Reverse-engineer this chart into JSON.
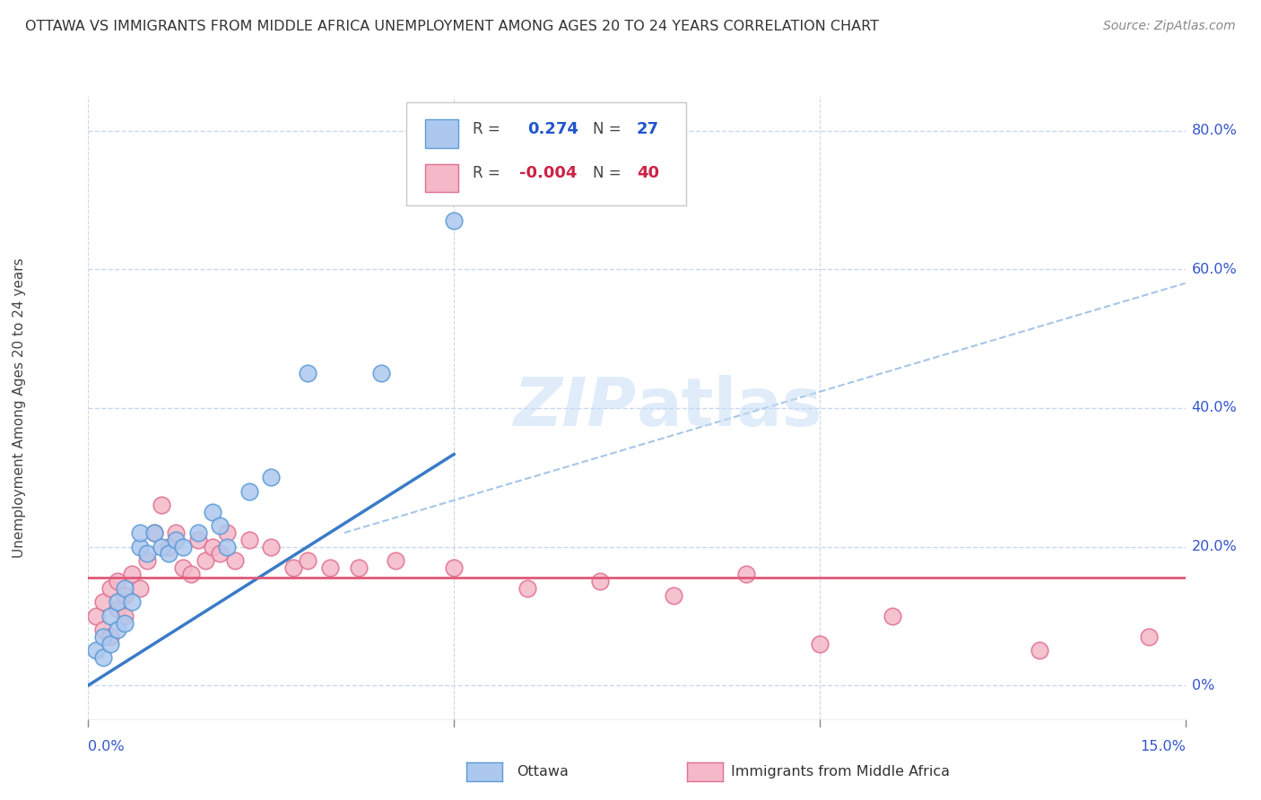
{
  "title": "OTTAWA VS IMMIGRANTS FROM MIDDLE AFRICA UNEMPLOYMENT AMONG AGES 20 TO 24 YEARS CORRELATION CHART",
  "source": "Source: ZipAtlas.com",
  "ylabel": "Unemployment Among Ages 20 to 24 years",
  "legend_label_ottawa": "Ottawa",
  "legend_label_immigrants": "Immigrants from Middle Africa",
  "r_ottawa": 0.274,
  "n_ottawa": 27,
  "r_immigrants": -0.004,
  "n_immigrants": 40,
  "watermark": "ZIPatlas",
  "ottawa_color": "#adc8ef",
  "ottawa_edge_color": "#5b9bd5",
  "ottawa_line_color": "#3a7bc8",
  "immigrants_color": "#f4b8c8",
  "immigrants_edge_color": "#e07090",
  "immigrants_line_color": "#e05878",
  "dashed_line_color": "#90b8e0",
  "grid_color": "#c8d8ec",
  "background_color": "#ffffff",
  "ottawa_scatter_x": [
    0.001,
    0.002,
    0.002,
    0.003,
    0.003,
    0.004,
    0.004,
    0.005,
    0.005,
    0.006,
    0.007,
    0.007,
    0.008,
    0.009,
    0.01,
    0.011,
    0.012,
    0.013,
    0.015,
    0.017,
    0.019,
    0.022,
    0.025,
    0.03,
    0.04,
    0.05,
    0.018
  ],
  "ottawa_scatter_y": [
    0.05,
    0.04,
    0.07,
    0.06,
    0.1,
    0.08,
    0.12,
    0.09,
    0.14,
    0.12,
    0.2,
    0.22,
    0.19,
    0.22,
    0.2,
    0.19,
    0.21,
    0.2,
    0.22,
    0.25,
    0.2,
    0.28,
    0.3,
    0.45,
    0.45,
    0.67,
    0.23
  ],
  "immigrants_scatter_x": [
    0.001,
    0.002,
    0.002,
    0.003,
    0.003,
    0.004,
    0.004,
    0.005,
    0.005,
    0.006,
    0.007,
    0.008,
    0.009,
    0.01,
    0.011,
    0.012,
    0.013,
    0.014,
    0.015,
    0.016,
    0.017,
    0.018,
    0.019,
    0.02,
    0.022,
    0.025,
    0.028,
    0.03,
    0.033,
    0.037,
    0.042,
    0.05,
    0.06,
    0.07,
    0.08,
    0.09,
    0.1,
    0.11,
    0.13,
    0.145
  ],
  "immigrants_scatter_y": [
    0.1,
    0.08,
    0.12,
    0.14,
    0.07,
    0.11,
    0.15,
    0.13,
    0.1,
    0.16,
    0.14,
    0.18,
    0.22,
    0.26,
    0.2,
    0.22,
    0.17,
    0.16,
    0.21,
    0.18,
    0.2,
    0.19,
    0.22,
    0.18,
    0.21,
    0.2,
    0.17,
    0.18,
    0.17,
    0.17,
    0.18,
    0.17,
    0.14,
    0.15,
    0.13,
    0.16,
    0.06,
    0.1,
    0.05,
    0.07
  ],
  "xlim": [
    0.0,
    0.15
  ],
  "ylim": [
    -0.05,
    0.85
  ],
  "ytick_positions": [
    0.0,
    0.2,
    0.4,
    0.6,
    0.8
  ],
  "ytick_labels": [
    "0%",
    "20.0%",
    "40.0%",
    "60.0%",
    "80.0%"
  ],
  "blue_line_x0": 0.0,
  "blue_line_y0": 0.0,
  "blue_line_x1": 0.045,
  "blue_line_y1": 0.3,
  "dashed_line_x0": 0.035,
  "dashed_line_y0": 0.22,
  "dashed_line_x1": 0.15,
  "dashed_line_y1": 0.58,
  "pink_line_y": 0.155
}
